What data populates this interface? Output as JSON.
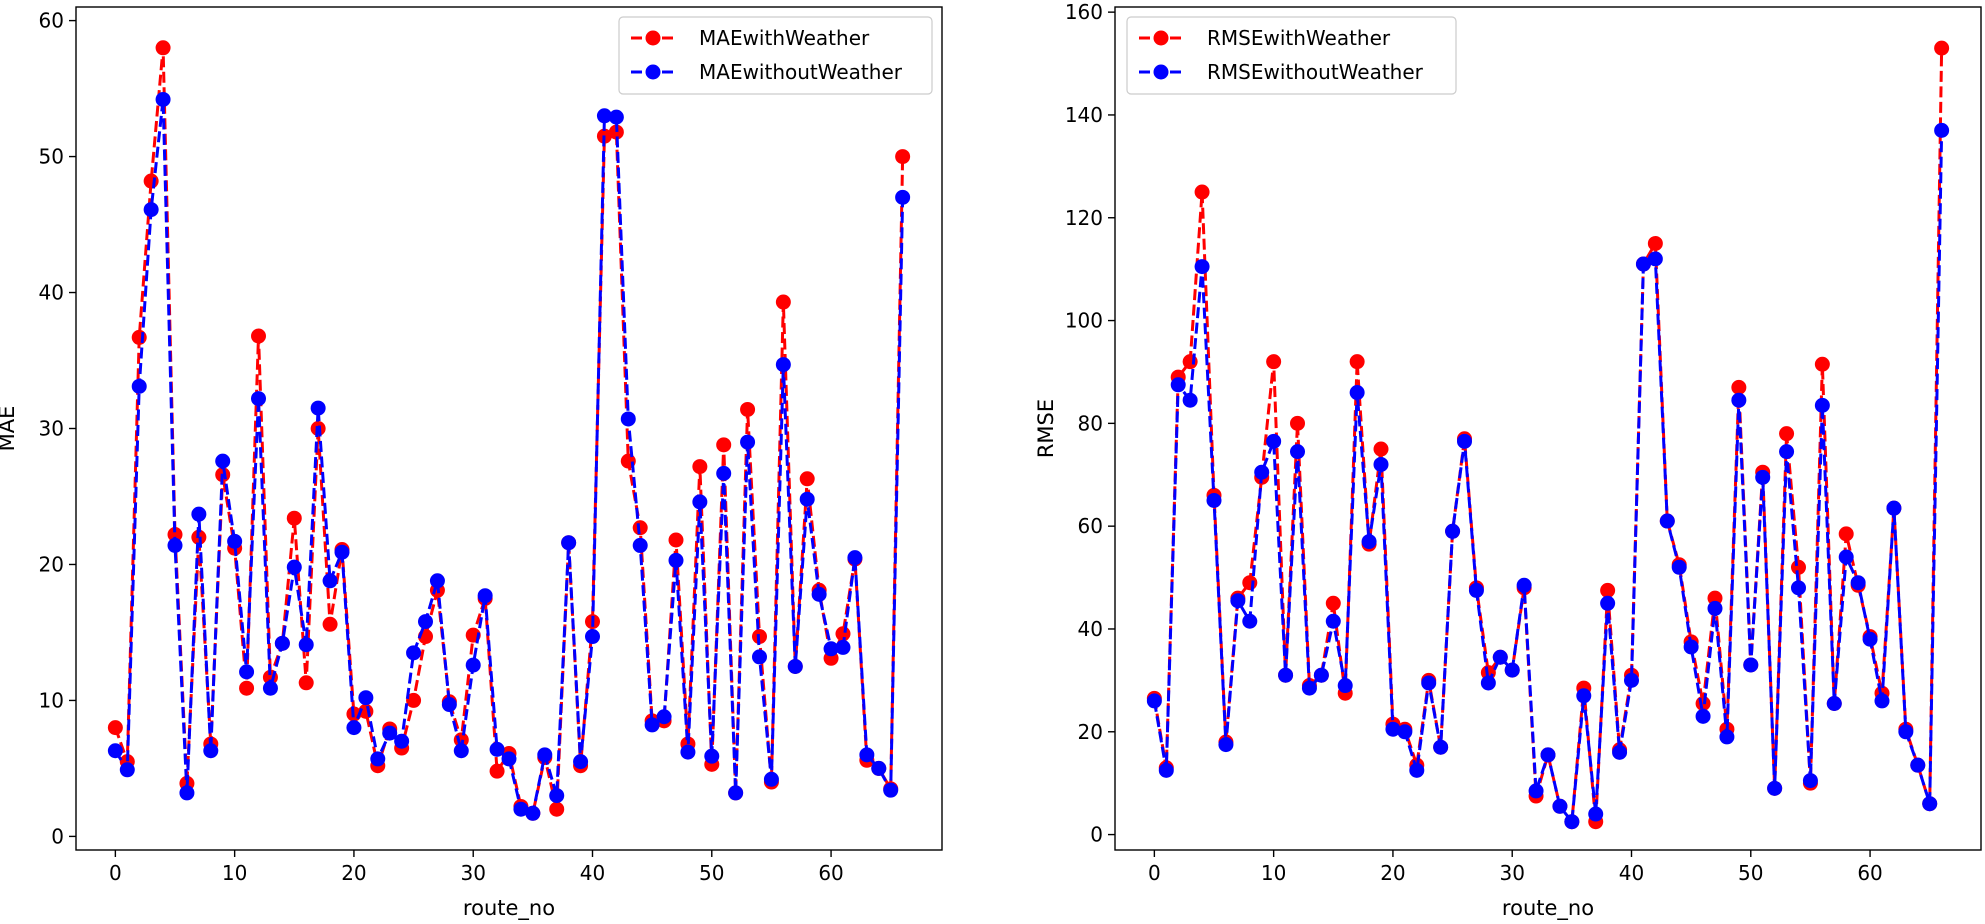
{
  "chart_data": [
    {
      "type": "line",
      "title": "",
      "xlabel": "route_no",
      "ylabel": "MAE",
      "xlim": [
        -3.3,
        69.3
      ],
      "ylim": [
        -1,
        61
      ],
      "xticks": [
        0,
        10,
        20,
        30,
        40,
        50,
        60
      ],
      "yticks": [
        0,
        10,
        20,
        30,
        40,
        50,
        60
      ],
      "legend_position": "top-right",
      "series": [
        {
          "name": "MAEwithWeather",
          "color": "#ff0000",
          "values": [
            8.0,
            5.5,
            36.7,
            48.2,
            58.0,
            22.2,
            3.9,
            22.0,
            6.8,
            26.6,
            21.2,
            10.9,
            36.8,
            11.7,
            14.2,
            23.4,
            11.3,
            30.0,
            15.6,
            21.1,
            9.0,
            9.2,
            5.2,
            7.9,
            6.5,
            10.0,
            14.7,
            18.1,
            9.9,
            7.1,
            14.8,
            17.5,
            4.8,
            6.1,
            2.2,
            1.7,
            5.8,
            2.0,
            21.6,
            5.2,
            15.8,
            51.5,
            51.8,
            27.6,
            22.7,
            8.5,
            8.5,
            21.8,
            6.8,
            27.2,
            5.3,
            28.8,
            3.2,
            31.4,
            14.7,
            4.0,
            39.3,
            12.5,
            26.3,
            18.1,
            13.1,
            14.9,
            20.4,
            5.6,
            5.0,
            3.5,
            50.0
          ]
        },
        {
          "name": "MAEwithoutWeather",
          "color": "#0000ff",
          "values": [
            6.3,
            4.9,
            33.1,
            46.1,
            54.2,
            21.4,
            3.2,
            23.7,
            6.3,
            27.6,
            21.7,
            12.1,
            32.2,
            10.9,
            14.2,
            19.8,
            14.1,
            31.5,
            18.8,
            20.9,
            8.0,
            10.2,
            5.7,
            7.6,
            7.0,
            13.5,
            15.8,
            18.8,
            9.7,
            6.3,
            12.6,
            17.7,
            6.4,
            5.7,
            2.0,
            1.7,
            6.0,
            3.0,
            21.6,
            5.5,
            14.7,
            53.0,
            52.9,
            30.7,
            21.4,
            8.2,
            8.8,
            20.3,
            6.2,
            24.6,
            5.9,
            26.7,
            3.2,
            29.0,
            13.2,
            4.2,
            34.7,
            12.5,
            24.8,
            17.8,
            13.8,
            13.9,
            20.5,
            6.0,
            5.0,
            3.4,
            47.0
          ]
        }
      ]
    },
    {
      "type": "line",
      "title": "",
      "xlabel": "route_no",
      "ylabel": "RMSE",
      "xlim": [
        -3.3,
        69.3
      ],
      "ylim": [
        -3,
        161
      ],
      "xticks": [
        0,
        10,
        20,
        30,
        40,
        50,
        60
      ],
      "yticks": [
        0,
        20,
        40,
        60,
        80,
        100,
        120,
        140,
        160
      ],
      "legend_position": "top-left",
      "series": [
        {
          "name": "RMSEwithWeather",
          "color": "#ff0000",
          "values": [
            26.5,
            13.0,
            89.0,
            92.0,
            125.0,
            66.0,
            18.0,
            46.0,
            49.0,
            69.5,
            92.0,
            31.0,
            80.0,
            29.0,
            31.0,
            45.0,
            27.5,
            92.0,
            56.5,
            75.0,
            21.5,
            20.5,
            13.5,
            30.0,
            17.0,
            59.0,
            77.0,
            48.0,
            31.5,
            34.5,
            32.0,
            48.0,
            7.5,
            15.5,
            5.5,
            2.5,
            28.5,
            2.5,
            47.5,
            16.5,
            31.0,
            111.0,
            115.0,
            61.0,
            52.5,
            37.5,
            25.5,
            46.0,
            20.5,
            87.0,
            33.0,
            70.5,
            9.0,
            78.0,
            52.0,
            10.0,
            91.5,
            25.5,
            58.5,
            48.5,
            38.5,
            27.5,
            63.5,
            20.5,
            13.5,
            6.0,
            153.0
          ]
        },
        {
          "name": "RMSEwithoutWeather",
          "color": "#0000ff",
          "values": [
            26.0,
            12.5,
            87.5,
            84.5,
            110.5,
            65.0,
            17.5,
            45.5,
            41.5,
            70.5,
            76.5,
            31.0,
            74.5,
            28.5,
            31.0,
            41.5,
            29.0,
            86.0,
            57.0,
            72.0,
            20.5,
            20.0,
            12.5,
            29.5,
            17.0,
            59.0,
            76.5,
            47.5,
            29.5,
            34.5,
            32.0,
            48.5,
            8.5,
            15.5,
            5.5,
            2.5,
            27.0,
            4.0,
            45.0,
            16.0,
            30.0,
            111.0,
            112.0,
            61.0,
            52.0,
            36.5,
            23.0,
            44.0,
            19.0,
            84.5,
            33.0,
            69.5,
            9.0,
            74.5,
            48.0,
            10.5,
            83.5,
            25.5,
            54.0,
            49.0,
            38.0,
            26.0,
            63.5,
            20.0,
            13.5,
            6.0,
            137.0
          ]
        }
      ]
    }
  ]
}
